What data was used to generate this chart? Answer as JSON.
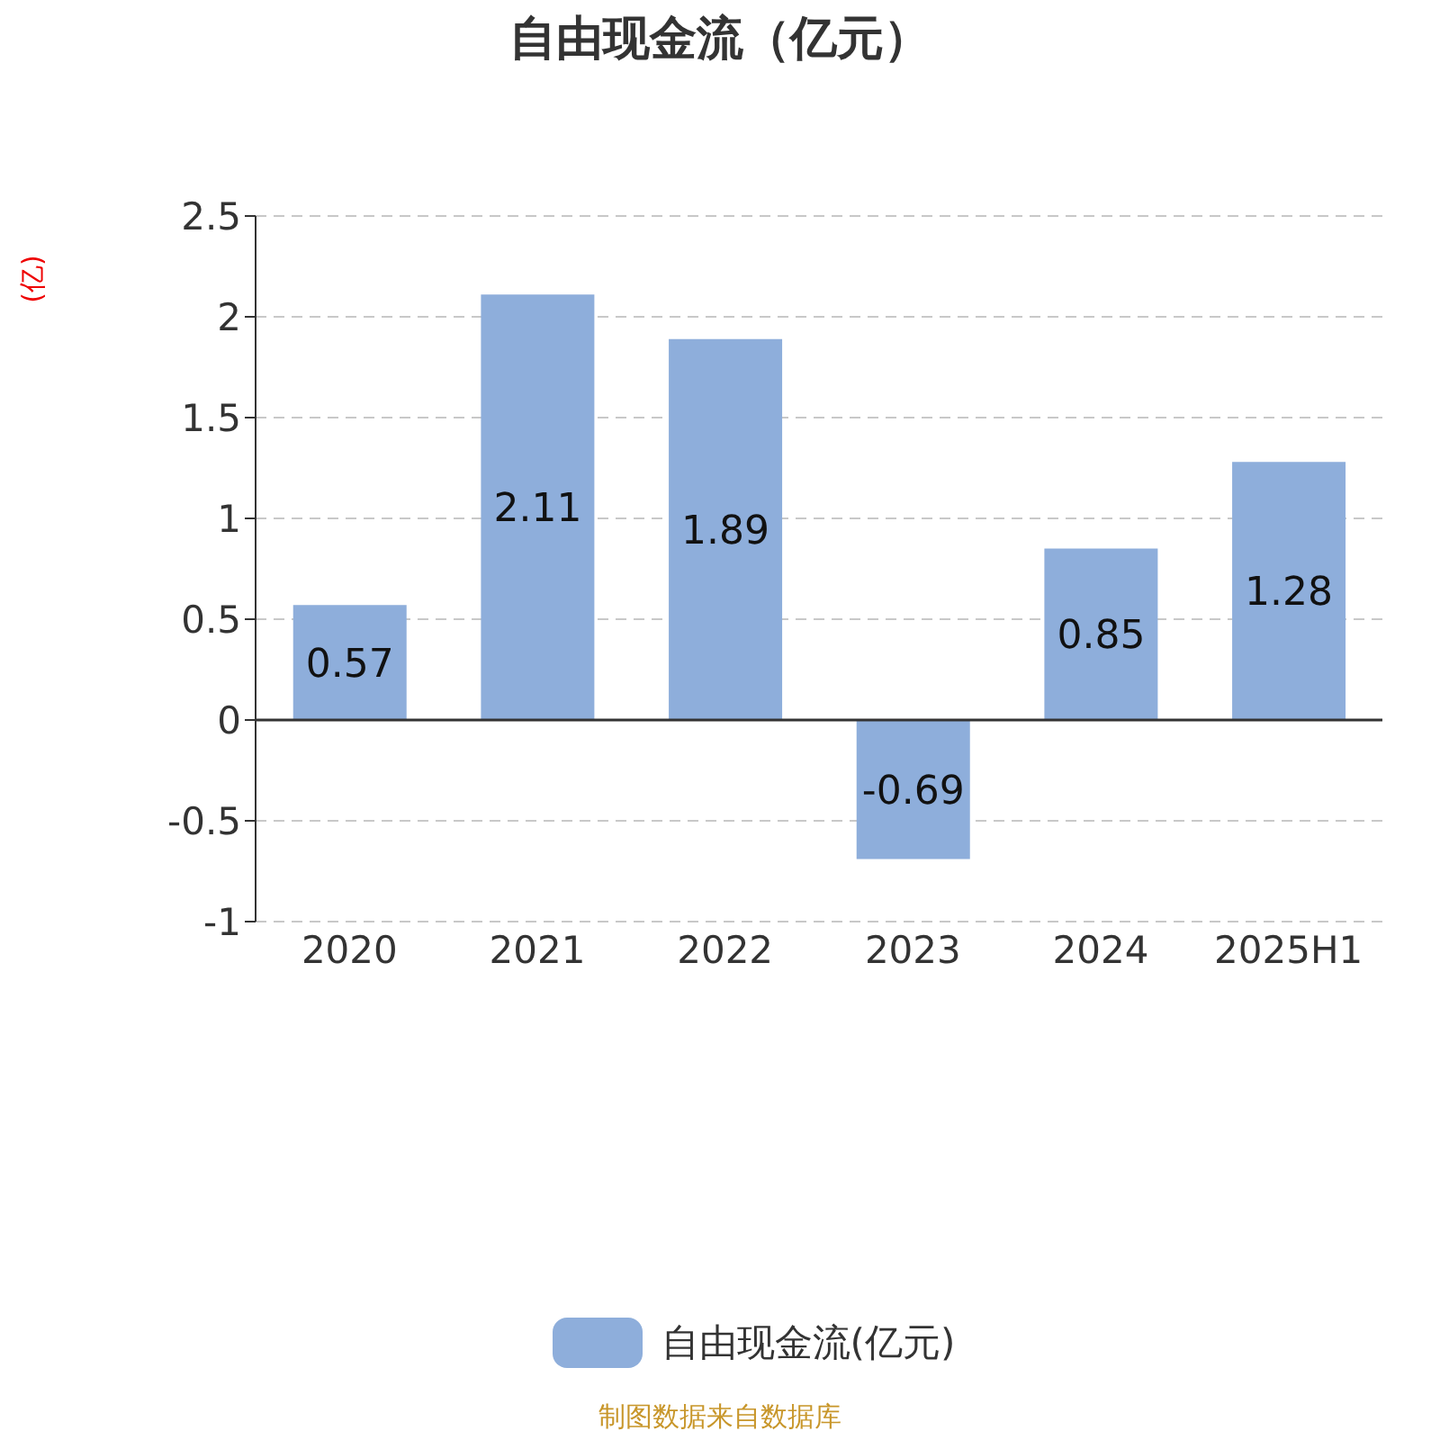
{
  "chart_data": {
    "type": "bar",
    "title": "自由现金流（亿元）",
    "ylabel": "(亿)",
    "categories": [
      "2020",
      "2021",
      "2022",
      "2023",
      "2024",
      "2025H1"
    ],
    "series": [
      {
        "name": "自由现金流(亿元)",
        "color": "#8eaedb",
        "values": [
          0.57,
          2.11,
          1.89,
          -0.69,
          0.85,
          1.28
        ]
      }
    ],
    "ylim": [
      -1,
      2.5
    ],
    "yticks": [
      -1,
      -0.5,
      0,
      0.5,
      1,
      1.5,
      2,
      2.5
    ],
    "grid": "y",
    "legend": "bottom",
    "data_labels": true,
    "annotations": [
      "制图数据来自数据库"
    ]
  }
}
